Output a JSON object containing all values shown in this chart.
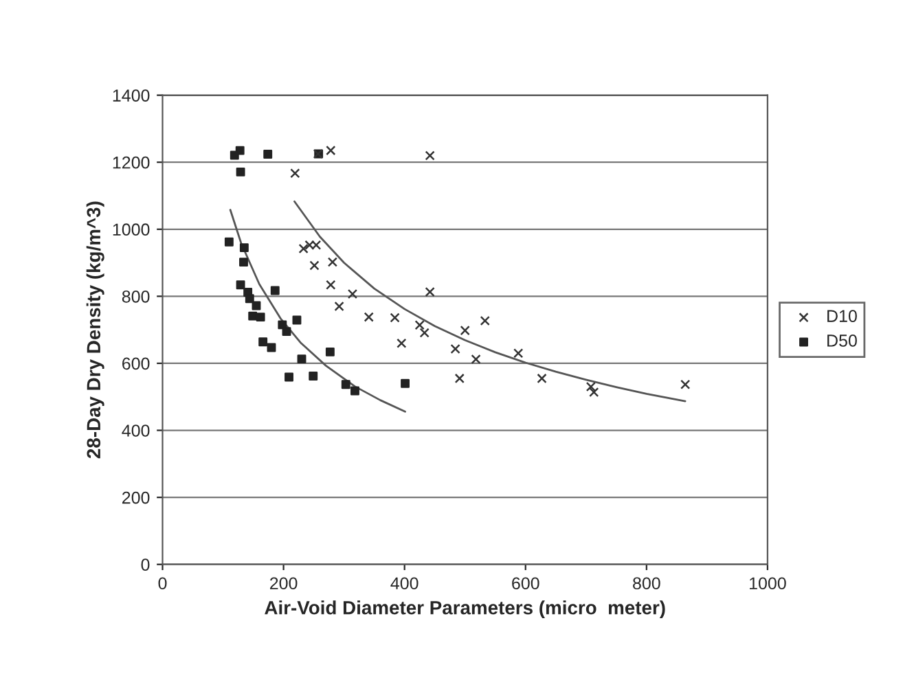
{
  "chart_data": {
    "type": "scatter",
    "xlabel": "Air-Void Diameter Parameters (micro  meter)",
    "ylabel": "28-Day Dry Density (kg/m^3)",
    "xlim": [
      0,
      1000
    ],
    "xticks": [
      0,
      200,
      400,
      600,
      800,
      1000
    ],
    "ylim": [
      0,
      1400
    ],
    "yticks": [
      0,
      200,
      400,
      600,
      800,
      1000,
      1200,
      1400
    ],
    "grid": "y",
    "legend": "right",
    "series": [
      {
        "name": "D10",
        "marker": "cross",
        "color": "#333333",
        "x": [
          278,
          257,
          442,
          219,
          233,
          243,
          254,
          251,
          281,
          278,
          314,
          292,
          341,
          384,
          442,
          425,
          433,
          395,
          500,
          533,
          484,
          518,
          588,
          491,
          627,
          708,
          713,
          864
        ],
        "values": [
          1235,
          1225,
          1220,
          1167,
          942,
          953,
          953,
          892,
          902,
          834,
          807,
          770,
          738,
          736,
          813,
          714,
          691,
          660,
          698,
          727,
          643,
          612,
          630,
          555,
          555,
          530,
          514,
          537
        ]
      },
      {
        "name": "D50",
        "marker": "square",
        "color": "#222222",
        "x": [
          119,
          128,
          174,
          258,
          129,
          110,
          135,
          134,
          129,
          141,
          144,
          155,
          149,
          162,
          186,
          198,
          205,
          222,
          166,
          180,
          230,
          277,
          209,
          249,
          303,
          318,
          401
        ],
        "values": [
          1221,
          1235,
          1224,
          1225,
          1171,
          962,
          945,
          902,
          834,
          812,
          793,
          772,
          741,
          738,
          817,
          715,
          695,
          729,
          664,
          647,
          613,
          634,
          559,
          562,
          537,
          518,
          540
        ]
      },
      {
        "type": "line",
        "marker": "none",
        "color": "#555555",
        "x": [
          218,
          260,
          300,
          350,
          400,
          450,
          500,
          550,
          600,
          650,
          700,
          750,
          800,
          864
        ],
        "values": [
          1083,
          978,
          900,
          823,
          762,
          711,
          669,
          633,
          602,
          575,
          551,
          529,
          509,
          487
        ]
      },
      {
        "type": "line",
        "marker": "none",
        "color": "#555555",
        "x": [
          112,
          130,
          160,
          195,
          228,
          270,
          318,
          360,
          401
        ],
        "values": [
          1058,
          958,
          836,
          734,
          662,
          593,
          531,
          490,
          456
        ]
      }
    ]
  }
}
